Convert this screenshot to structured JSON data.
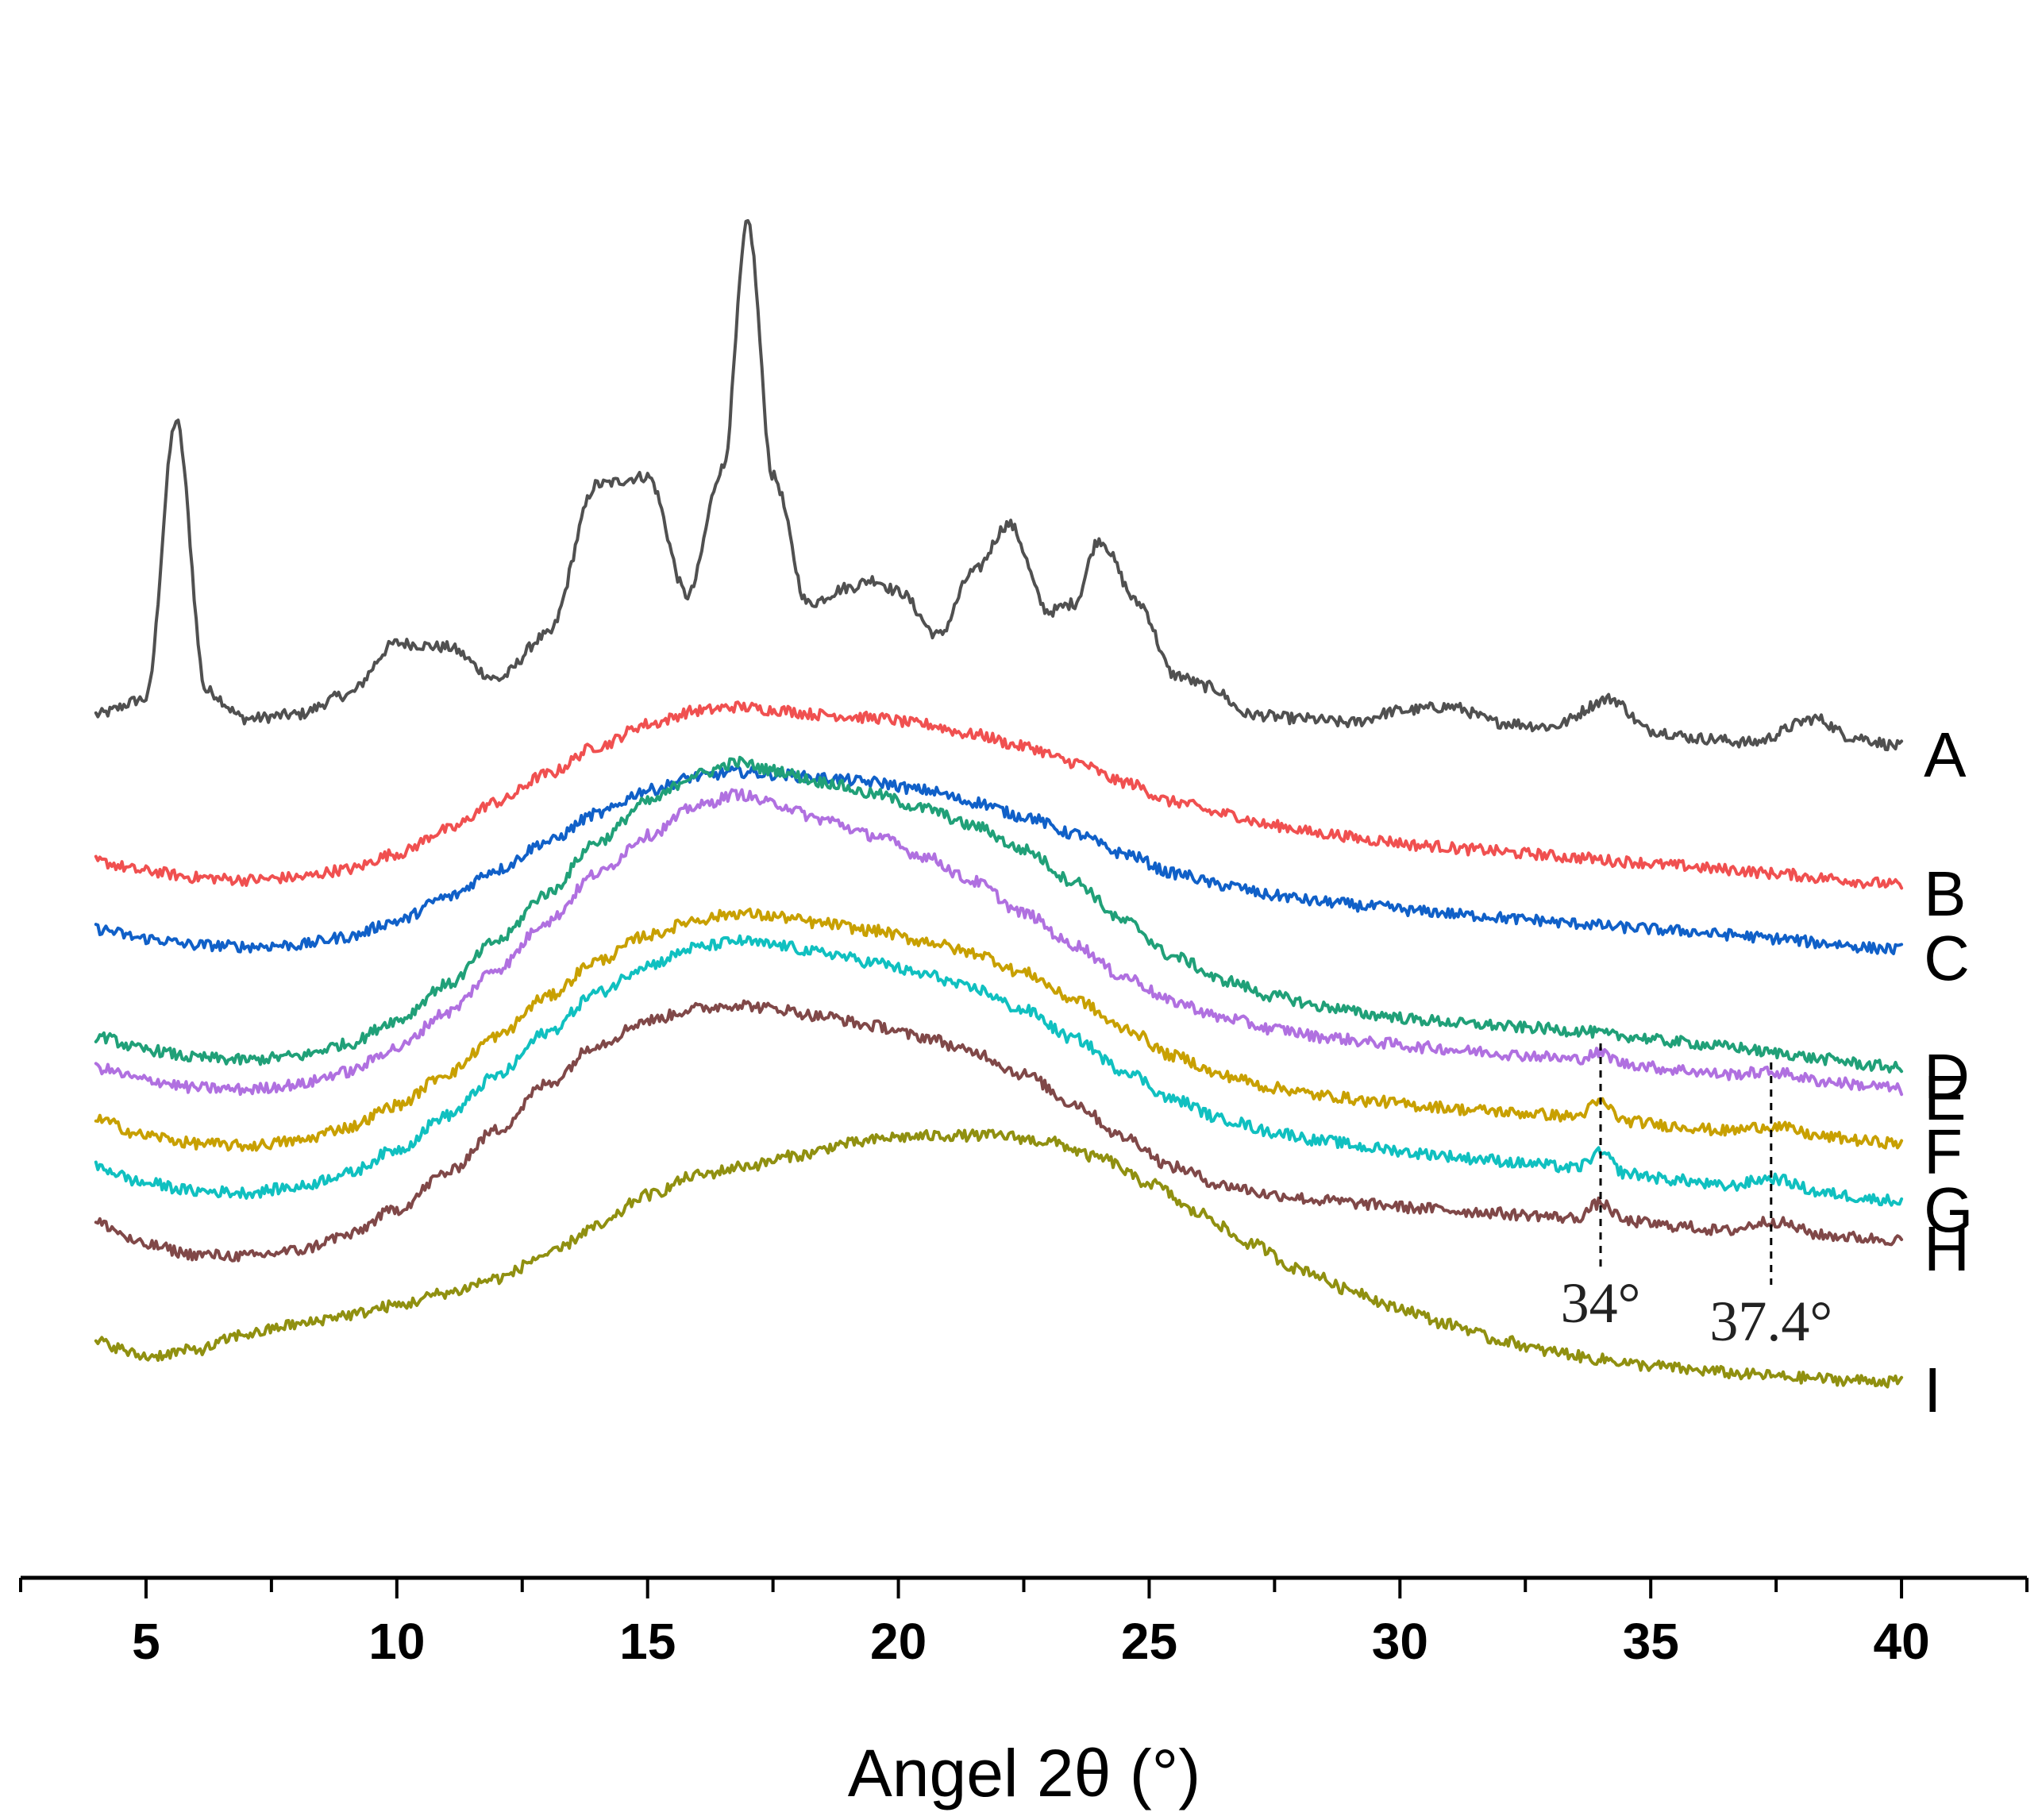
{
  "chart_data": {
    "type": "line",
    "title": "",
    "xlabel": "Angel 2θ (°)",
    "ylabel": "",
    "xlim": [
      2.5,
      42.5
    ],
    "xticks": [
      5,
      10,
      15,
      20,
      25,
      30,
      35,
      40
    ],
    "grid": false,
    "series": [
      {
        "name": "A",
        "color": "#505050",
        "x": [
          4,
          5,
          5.6,
          6.2,
          7,
          8,
          9,
          10,
          11,
          12,
          13,
          14,
          15,
          15.8,
          16.5,
          17,
          17.5,
          18.2,
          19,
          19.5,
          20,
          20.8,
          21.5,
          22.2,
          23,
          23.5,
          24,
          24.8,
          25.5,
          26.2,
          27,
          28,
          29,
          30,
          31,
          32,
          33,
          34.2,
          35,
          36,
          37,
          38.3,
          39,
          40
        ],
        "y": [
          100,
          120,
          470,
          130,
          95,
          100,
          125,
          190,
          185,
          145,
          200,
          390,
          400,
          250,
          410,
          720,
          400,
          240,
          260,
          270,
          255,
          200,
          280,
          340,
          230,
          240,
          320,
          240,
          150,
          135,
          100,
          95,
          90,
          105,
          110,
          90,
          85,
          120,
          80,
          70,
          65,
          95,
          72,
          60
        ]
      },
      {
        "name": "B",
        "color": "#f05050",
        "x": [
          4,
          5,
          6,
          7,
          8,
          9,
          10,
          11,
          12,
          13,
          14,
          15,
          16,
          16.8,
          17.5,
          18.5,
          19.5,
          20.5,
          21.5,
          22.5,
          23.5,
          24.5,
          25.5,
          26.5,
          27.5,
          28.5,
          29.5,
          30.5,
          31.5,
          32.5,
          33.5,
          34.5,
          35.5,
          36.5,
          37.5,
          38.5,
          39.5,
          40
        ],
        "y": [
          -85,
          -97,
          -105,
          -108,
          -105,
          -95,
          -75,
          -45,
          -10,
          25,
          60,
          88,
          105,
          110,
          106,
          100,
          96,
          88,
          75,
          60,
          40,
          15,
          -10,
          -25,
          -40,
          -50,
          -58,
          -65,
          -70,
          -75,
          -80,
          -85,
          -90,
          -95,
          -100,
          -106,
          -112,
          -115
        ]
      },
      {
        "name": "C",
        "color": "#1060c8",
        "x": [
          4,
          5,
          6,
          7,
          8,
          9,
          10,
          11,
          12,
          13,
          14,
          15,
          16,
          16.8,
          17.5,
          18.5,
          19.5,
          20.5,
          21.5,
          22.5,
          23.5,
          24.5,
          25.5,
          26.5,
          27.5,
          28.5,
          29.5,
          30.5,
          31.5,
          32.5,
          33.5,
          34.5,
          35.5,
          36.5,
          37.5,
          38.5,
          39.5,
          40
        ],
        "y": [
          -170,
          -182,
          -190,
          -192,
          -190,
          -180,
          -160,
          -130,
          -95,
          -60,
          -25,
          5,
          22,
          28,
          25,
          20,
          15,
          5,
          -10,
          -28,
          -50,
          -75,
          -100,
          -115,
          -128,
          -136,
          -142,
          -148,
          -153,
          -158,
          -163,
          -168,
          -172,
          -177,
          -182,
          -188,
          -194,
          -196
        ]
      },
      {
        "name": "D",
        "color": "#20a078",
        "x": [
          4,
          5,
          6,
          7,
          8,
          9,
          10,
          11,
          12,
          13,
          14,
          15,
          16,
          16.8,
          17.5,
          18.5,
          19.5,
          20.5,
          21.5,
          22.5,
          23.5,
          24.5,
          25.5,
          26.5,
          27.5,
          28.5,
          29.5,
          30.5,
          31.5,
          32.5,
          33.5,
          34.5,
          35.5,
          36.5,
          37.5,
          38.5,
          39.5,
          40
        ],
        "y": [
          -305,
          -322,
          -332,
          -335,
          -330,
          -315,
          -285,
          -240,
          -185,
          -125,
          -60,
          -10,
          25,
          40,
          30,
          15,
          0,
          -18,
          -40,
          -70,
          -110,
          -160,
          -205,
          -235,
          -255,
          -268,
          -278,
          -285,
          -290,
          -294,
          -298,
          -305,
          -312,
          -318,
          -326,
          -334,
          -342,
          -345
        ]
      },
      {
        "name": "E",
        "color": "#b070e0",
        "x": [
          4,
          5,
          6,
          7,
          8,
          9,
          10,
          11,
          12,
          13,
          14,
          15,
          16,
          16.8,
          17.5,
          18.5,
          19.5,
          20.5,
          21.5,
          22.5,
          23.5,
          24.5,
          25.5,
          26.5,
          27.5,
          28.5,
          29.5,
          30.5,
          31.5,
          32.5,
          33.5,
          34,
          34.5,
          35.5,
          36.5,
          37.4,
          38.5,
          39.5,
          40
        ],
        "y": [
          -345,
          -360,
          -370,
          -372,
          -366,
          -350,
          -320,
          -275,
          -220,
          -160,
          -100,
          -52,
          -15,
          0,
          -12,
          -32,
          -52,
          -78,
          -110,
          -150,
          -190,
          -230,
          -262,
          -282,
          -296,
          -306,
          -313,
          -319,
          -324,
          -329,
          -334,
          -326,
          -340,
          -347,
          -353,
          -350,
          -362,
          -368,
          -372
        ]
      },
      {
        "name": "F",
        "color": "#c8a000",
        "x": [
          4,
          5,
          6,
          7,
          8,
          9,
          10,
          11,
          12,
          13,
          14,
          15,
          16,
          16.8,
          17.5,
          18.5,
          19.5,
          20.5,
          21.5,
          22.5,
          23.5,
          24.5,
          25.5,
          26.5,
          27.5,
          28.5,
          29.5,
          30.5,
          31.5,
          32.5,
          33.5,
          34,
          34.5,
          35.5,
          36.5,
          37.4,
          38.5,
          39.5,
          40
        ],
        "y": [
          -410,
          -430,
          -440,
          -443,
          -437,
          -420,
          -392,
          -352,
          -305,
          -255,
          -210,
          -178,
          -158,
          -150,
          -154,
          -163,
          -172,
          -185,
          -200,
          -225,
          -258,
          -295,
          -330,
          -355,
          -370,
          -380,
          -387,
          -393,
          -398,
          -402,
          -406,
          -388,
          -412,
          -418,
          -424,
          -418,
          -432,
          -438,
          -440
        ]
      },
      {
        "name": "G",
        "color": "#10c0c0",
        "x": [
          4,
          5,
          6,
          7,
          8,
          9,
          10,
          11,
          12,
          13,
          14,
          15,
          16,
          16.8,
          17.5,
          18.5,
          19.5,
          20.5,
          21.5,
          22.5,
          23.5,
          24.5,
          25.5,
          26.5,
          27.5,
          28.5,
          29.5,
          30.5,
          31.5,
          32.5,
          33.5,
          34,
          34.5,
          35.5,
          36.5,
          37.4,
          38.5,
          39.5,
          40
        ],
        "y": [
          -470,
          -490,
          -500,
          -502,
          -495,
          -478,
          -448,
          -405,
          -355,
          -300,
          -250,
          -215,
          -193,
          -185,
          -190,
          -200,
          -212,
          -227,
          -245,
          -272,
          -308,
          -348,
          -385,
          -410,
          -426,
          -437,
          -446,
          -453,
          -459,
          -465,
          -471,
          -452,
          -478,
          -486,
          -494,
          -484,
          -503,
          -510,
          -513
        ]
      },
      {
        "name": "H",
        "color": "#804848",
        "x": [
          4,
          5,
          6,
          7,
          8,
          9,
          10,
          11,
          12,
          13,
          14,
          15,
          16,
          16.8,
          17.5,
          18.5,
          19.5,
          20.5,
          21.5,
          22.5,
          23.5,
          24.5,
          25.5,
          26.5,
          27.5,
          28.5,
          29.5,
          30.5,
          31.5,
          32.5,
          33.5,
          34,
          34.5,
          35.5,
          36.5,
          37.4,
          38.5,
          39.5,
          40
        ],
        "y": [
          -540,
          -568,
          -580,
          -582,
          -575,
          -556,
          -523,
          -477,
          -423,
          -365,
          -315,
          -285,
          -270,
          -265,
          -270,
          -280,
          -292,
          -306,
          -325,
          -353,
          -390,
          -432,
          -470,
          -493,
          -505,
          -512,
          -517,
          -522,
          -526,
          -530,
          -534,
          -515,
          -538,
          -544,
          -550,
          -538,
          -556,
          -560,
          -562
        ]
      },
      {
        "name": "I",
        "color": "#909010",
        "x": [
          4,
          5,
          6,
          7,
          8,
          9,
          10,
          11,
          12,
          13,
          14,
          15,
          16,
          17,
          18,
          19,
          20,
          21,
          22,
          23,
          24,
          25,
          26,
          27,
          28,
          29,
          30,
          31,
          32,
          33,
          34,
          35,
          36,
          37,
          38,
          39,
          40
        ],
        "y": [
          -690,
          -708,
          -700,
          -680,
          -668,
          -656,
          -644,
          -628,
          -610,
          -580,
          -545,
          -505,
          -480,
          -468,
          -455,
          -440,
          -432,
          -430,
          -430,
          -438,
          -458,
          -490,
          -528,
          -566,
          -598,
          -624,
          -648,
          -668,
          -688,
          -702,
          -712,
          -720,
          -726,
          -731,
          -735,
          -738,
          -740
        ]
      }
    ],
    "series_labels": [
      "A",
      "B",
      "C",
      "D",
      "E",
      "F",
      "G",
      "H",
      "I"
    ],
    "annotations": [
      {
        "x": 34,
        "label": "34°"
      },
      {
        "x": 37.4,
        "label": "37.4°"
      }
    ]
  }
}
